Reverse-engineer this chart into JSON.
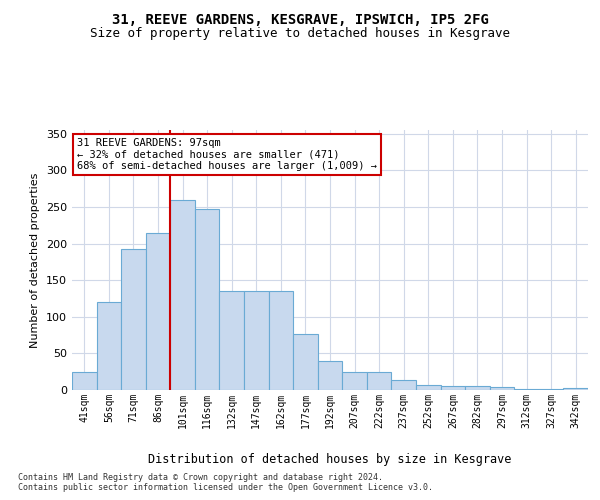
{
  "title": "31, REEVE GARDENS, KESGRAVE, IPSWICH, IP5 2FG",
  "subtitle": "Size of property relative to detached houses in Kesgrave",
  "xlabel": "Distribution of detached houses by size in Kesgrave",
  "ylabel": "Number of detached properties",
  "categories": [
    "41sqm",
    "56sqm",
    "71sqm",
    "86sqm",
    "101sqm",
    "116sqm",
    "132sqm",
    "147sqm",
    "162sqm",
    "177sqm",
    "192sqm",
    "207sqm",
    "222sqm",
    "237sqm",
    "252sqm",
    "267sqm",
    "282sqm",
    "297sqm",
    "312sqm",
    "327sqm",
    "342sqm"
  ],
  "values": [
    25,
    120,
    192,
    215,
    260,
    247,
    135,
    135,
    135,
    76,
    40,
    25,
    25,
    14,
    7,
    6,
    6,
    4,
    2,
    2,
    3
  ],
  "bar_color": "#c8d9ee",
  "bar_edge_color": "#6aaad4",
  "vline_color": "#cc0000",
  "vline_bar_index": 4,
  "annotation_text": "31 REEVE GARDENS: 97sqm\n← 32% of detached houses are smaller (471)\n68% of semi-detached houses are larger (1,009) →",
  "annotation_box_color": "#ffffff",
  "annotation_box_edge": "#cc0000",
  "ylim": [
    0,
    355
  ],
  "yticks": [
    0,
    50,
    100,
    150,
    200,
    250,
    300,
    350
  ],
  "footer_text": "Contains HM Land Registry data © Crown copyright and database right 2024.\nContains public sector information licensed under the Open Government Licence v3.0.",
  "background_color": "#ffffff",
  "grid_color": "#d0d8e8",
  "title_fontsize": 10,
  "subtitle_fontsize": 9
}
